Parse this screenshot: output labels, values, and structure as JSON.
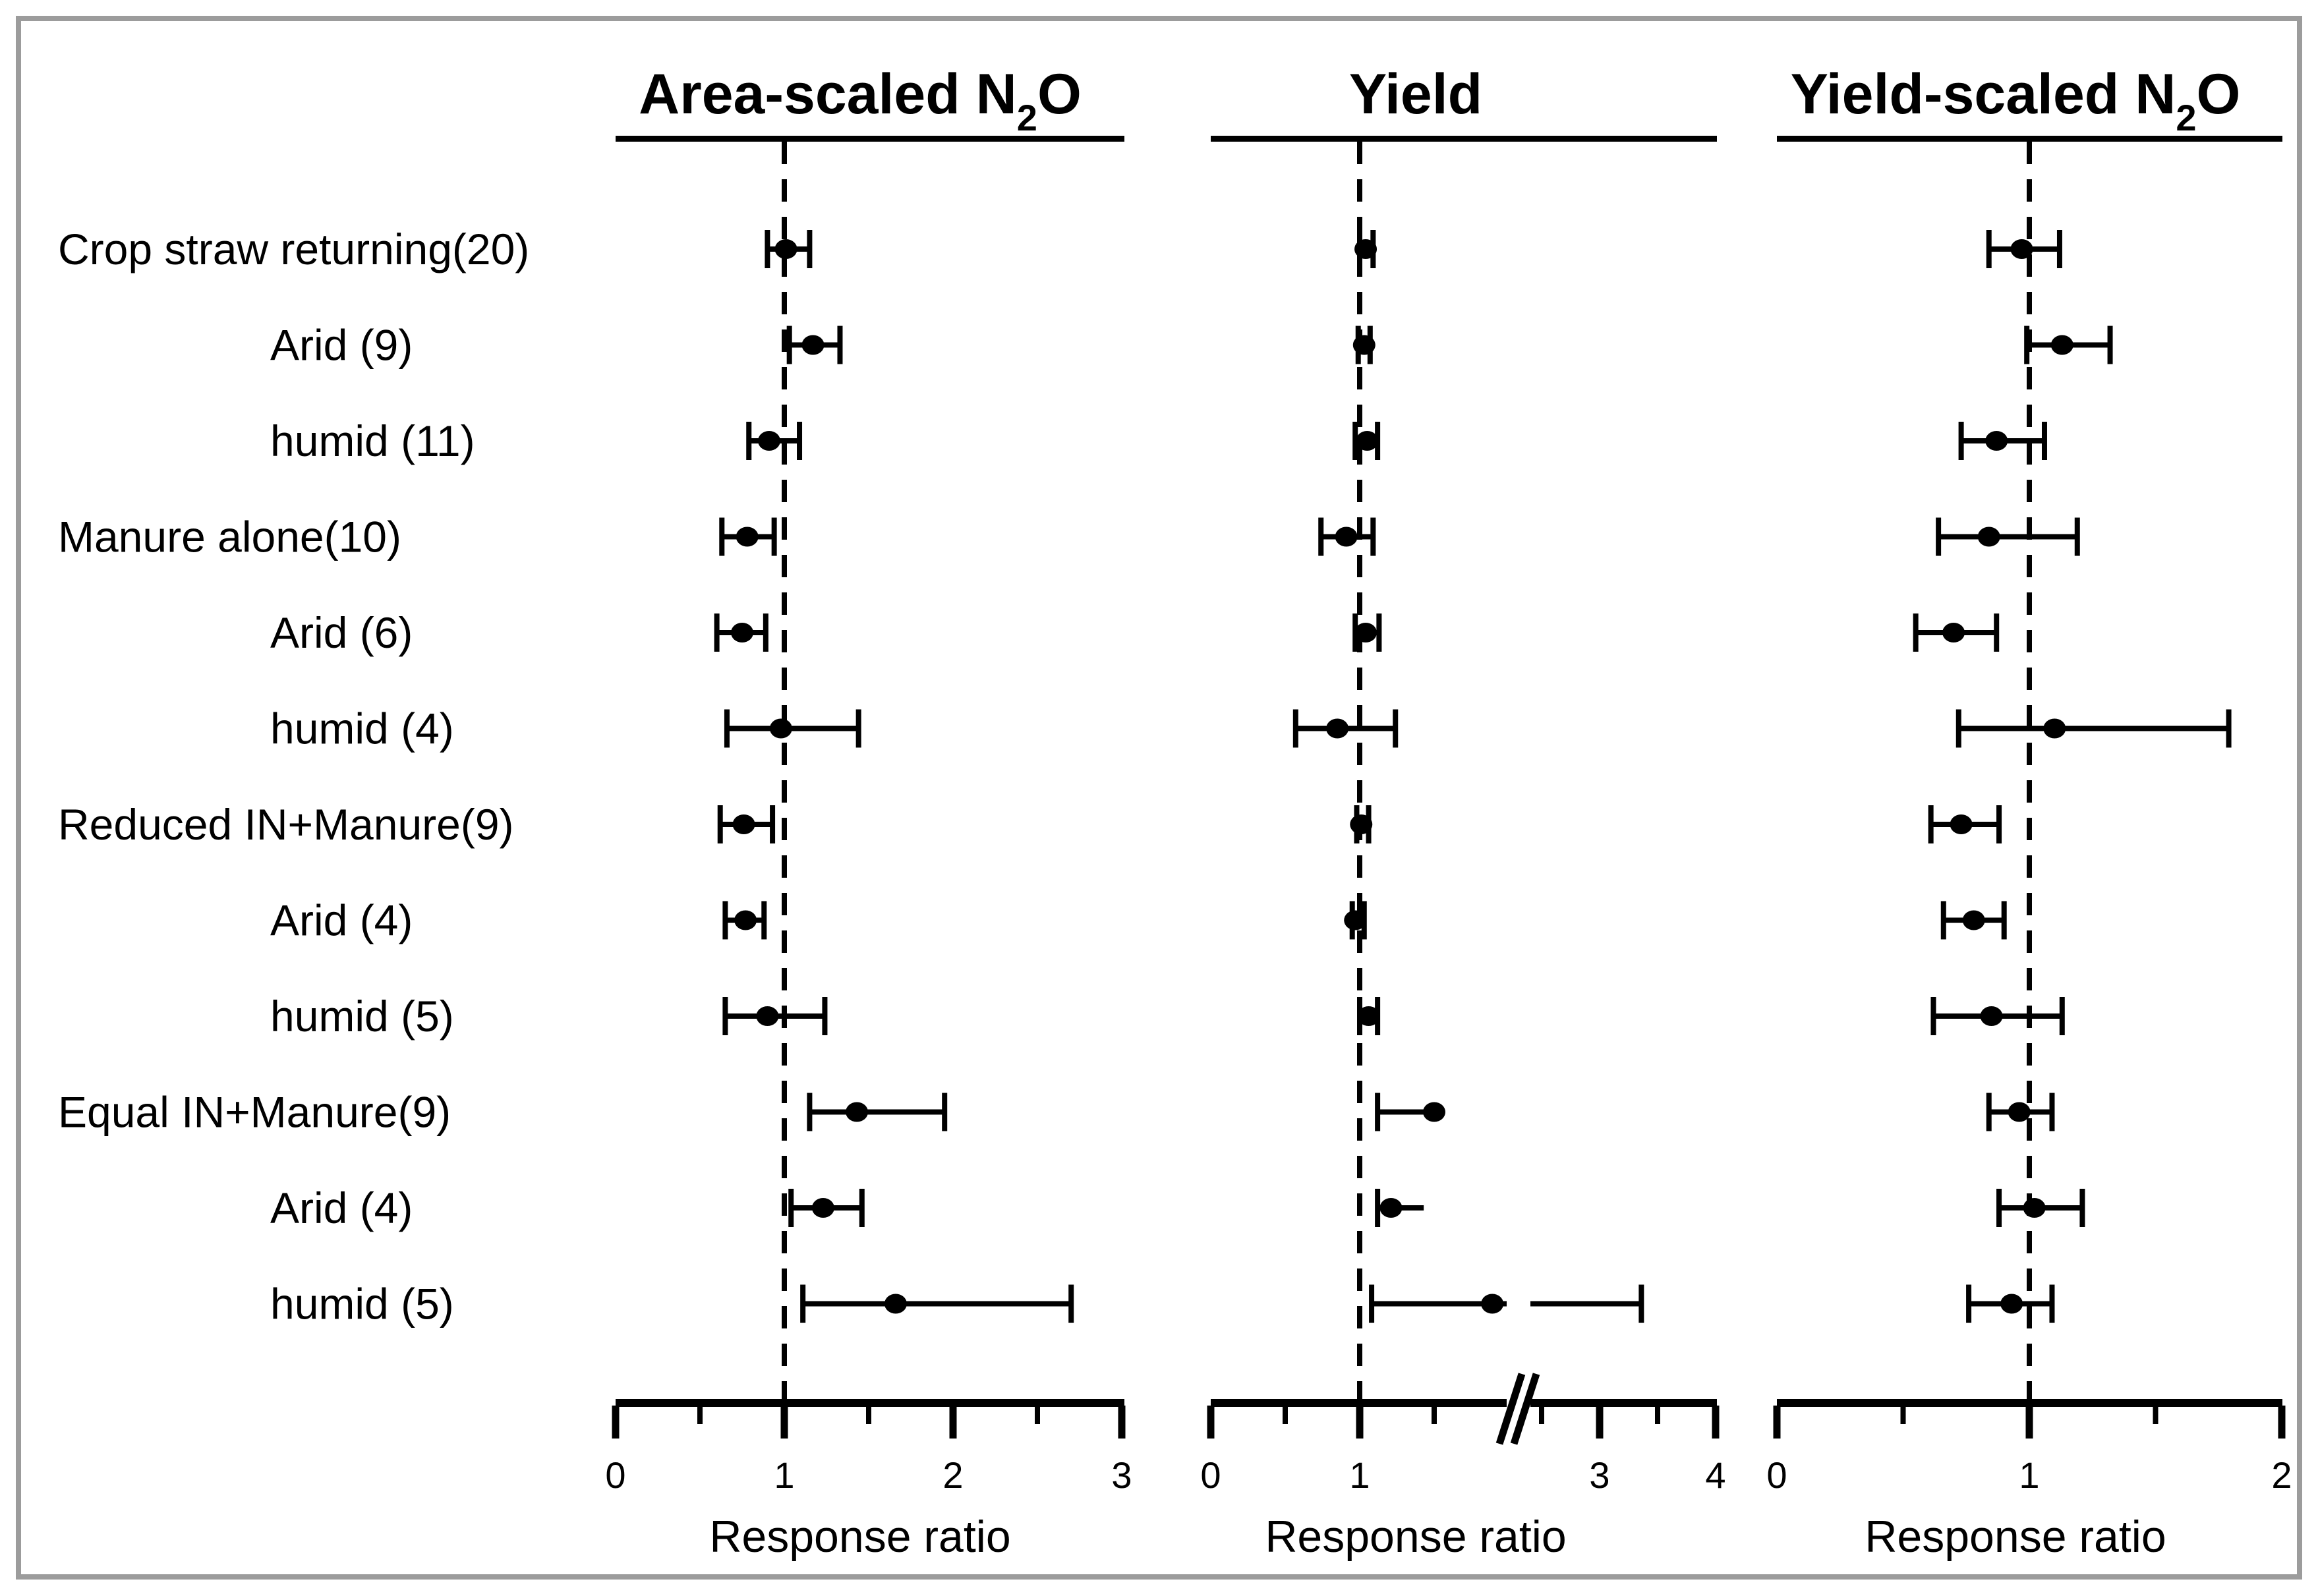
{
  "page": {
    "background_color": "#ffffff",
    "border_color": "#9c9c9c",
    "ink_color": "#000000"
  },
  "chart_data": {
    "type": "forest",
    "layout_hint": "three horizontal forest-plot panels sharing one row-label column; dashed reference line at x=1 in each panel; grid off",
    "xlabel": "Response ratio",
    "categories": [
      {
        "label": "Crop straw returning(20)",
        "indent": false
      },
      {
        "label": "Arid (9)",
        "indent": true
      },
      {
        "label": "humid (11)",
        "indent": true
      },
      {
        "label": "Manure alone(10)",
        "indent": false
      },
      {
        "label": "Arid (6)",
        "indent": true
      },
      {
        "label": "humid (4)",
        "indent": true
      },
      {
        "label": "Reduced IN+Manure(9)",
        "indent": false
      },
      {
        "label": "Arid (4)",
        "indent": true
      },
      {
        "label": "humid (5)",
        "indent": true
      },
      {
        "label": "Equal IN+Manure(9)",
        "indent": false
      },
      {
        "label": "Arid (4)",
        "indent": true
      },
      {
        "label": "humid (5)",
        "indent": true
      }
    ],
    "panels": [
      {
        "id": "area-scaled-n2o",
        "title": "Area-scaled N2O",
        "title_parts": {
          "pre": "Area-scaled N",
          "sub": "2",
          "post": "O"
        },
        "xlabel": "Response ratio",
        "xlim": [
          0,
          3
        ],
        "ref_line": 1,
        "major_ticks": [
          0,
          1,
          2,
          3
        ],
        "minor_ticks": [
          0.5,
          1.5,
          2.5
        ],
        "tick_labels": [
          "0",
          "1",
          "2",
          "3"
        ],
        "axis_break": null,
        "points": [
          {
            "mean": 1.01,
            "lo": 0.9,
            "hi": 1.15
          },
          {
            "mean": 1.17,
            "lo": 1.03,
            "hi": 1.33
          },
          {
            "mean": 0.91,
            "lo": 0.79,
            "hi": 1.09
          },
          {
            "mean": 0.78,
            "lo": 0.63,
            "hi": 0.94
          },
          {
            "mean": 0.75,
            "lo": 0.6,
            "hi": 0.89
          },
          {
            "mean": 0.98,
            "lo": 0.66,
            "hi": 1.44
          },
          {
            "mean": 0.76,
            "lo": 0.62,
            "hi": 0.93
          },
          {
            "mean": 0.77,
            "lo": 0.65,
            "hi": 0.88
          },
          {
            "mean": 0.9,
            "lo": 0.65,
            "hi": 1.24
          },
          {
            "mean": 1.43,
            "lo": 1.15,
            "hi": 1.95
          },
          {
            "mean": 1.23,
            "lo": 1.04,
            "hi": 1.46
          },
          {
            "mean": 1.66,
            "lo": 1.11,
            "hi": 2.7
          }
        ]
      },
      {
        "id": "yield",
        "title": "Yield",
        "title_parts": {
          "pre": "Yield",
          "sub": "",
          "post": ""
        },
        "xlabel": "Response ratio",
        "xlim": [
          0,
          4
        ],
        "ref_line": 1,
        "major_ticks": [
          0,
          1,
          3,
          4
        ],
        "minor_ticks": [
          0.5,
          1.5,
          2.5,
          3.5
        ],
        "tick_labels": [
          "0",
          "1",
          "3",
          "4"
        ],
        "axis_break": {
          "position_value": 2.0,
          "left_scale_max": 1.95
        },
        "points": [
          {
            "mean": 1.04,
            "lo": 1.0,
            "hi": 1.09
          },
          {
            "mean": 1.03,
            "lo": 0.99,
            "hi": 1.07
          },
          {
            "mean": 1.05,
            "lo": 0.97,
            "hi": 1.12
          },
          {
            "mean": 0.91,
            "lo": 0.74,
            "hi": 1.09
          },
          {
            "mean": 1.04,
            "lo": 0.97,
            "hi": 1.13
          },
          {
            "mean": 0.85,
            "lo": 0.57,
            "hi": 1.24
          },
          {
            "mean": 1.01,
            "lo": 0.98,
            "hi": 1.06
          },
          {
            "mean": 0.97,
            "lo": 0.95,
            "hi": 1.03
          },
          {
            "mean": 1.06,
            "lo": 1.0,
            "hi": 1.12
          },
          {
            "mean": 1.5,
            "lo": 1.12,
            "hi": 1.52,
            "cap_right": false
          },
          {
            "mean": 1.21,
            "lo": 1.12,
            "hi": 1.43,
            "cap_right": false
          },
          {
            "mean": 1.89,
            "lo": 1.08,
            "hi": 3.36,
            "break_gap": true
          }
        ]
      },
      {
        "id": "yield-scaled-n2o",
        "title": "Yield-scaled N2O",
        "title_parts": {
          "pre": "Yield-scaled N",
          "sub": "2",
          "post": "O"
        },
        "xlabel": "Response ratio",
        "xlim": [
          0,
          2
        ],
        "ref_line": 1,
        "major_ticks": [
          0,
          1,
          2
        ],
        "minor_ticks": [
          0.5,
          1.5
        ],
        "tick_labels": [
          "0",
          "1",
          "2"
        ],
        "axis_break": null,
        "points": [
          {
            "mean": 0.97,
            "lo": 0.84,
            "hi": 1.12
          },
          {
            "mean": 1.13,
            "lo": 0.99,
            "hi": 1.32
          },
          {
            "mean": 0.87,
            "lo": 0.73,
            "hi": 1.06
          },
          {
            "mean": 0.84,
            "lo": 0.64,
            "hi": 1.19
          },
          {
            "mean": 0.7,
            "lo": 0.55,
            "hi": 0.87
          },
          {
            "mean": 1.1,
            "lo": 0.72,
            "hi": 1.79
          },
          {
            "mean": 0.73,
            "lo": 0.61,
            "hi": 0.88
          },
          {
            "mean": 0.78,
            "lo": 0.66,
            "hi": 0.9
          },
          {
            "mean": 0.85,
            "lo": 0.62,
            "hi": 1.13
          },
          {
            "mean": 0.96,
            "lo": 0.84,
            "hi": 1.09
          },
          {
            "mean": 1.02,
            "lo": 0.88,
            "hi": 1.21
          },
          {
            "mean": 0.93,
            "lo": 0.76,
            "hi": 1.09
          }
        ]
      }
    ]
  }
}
